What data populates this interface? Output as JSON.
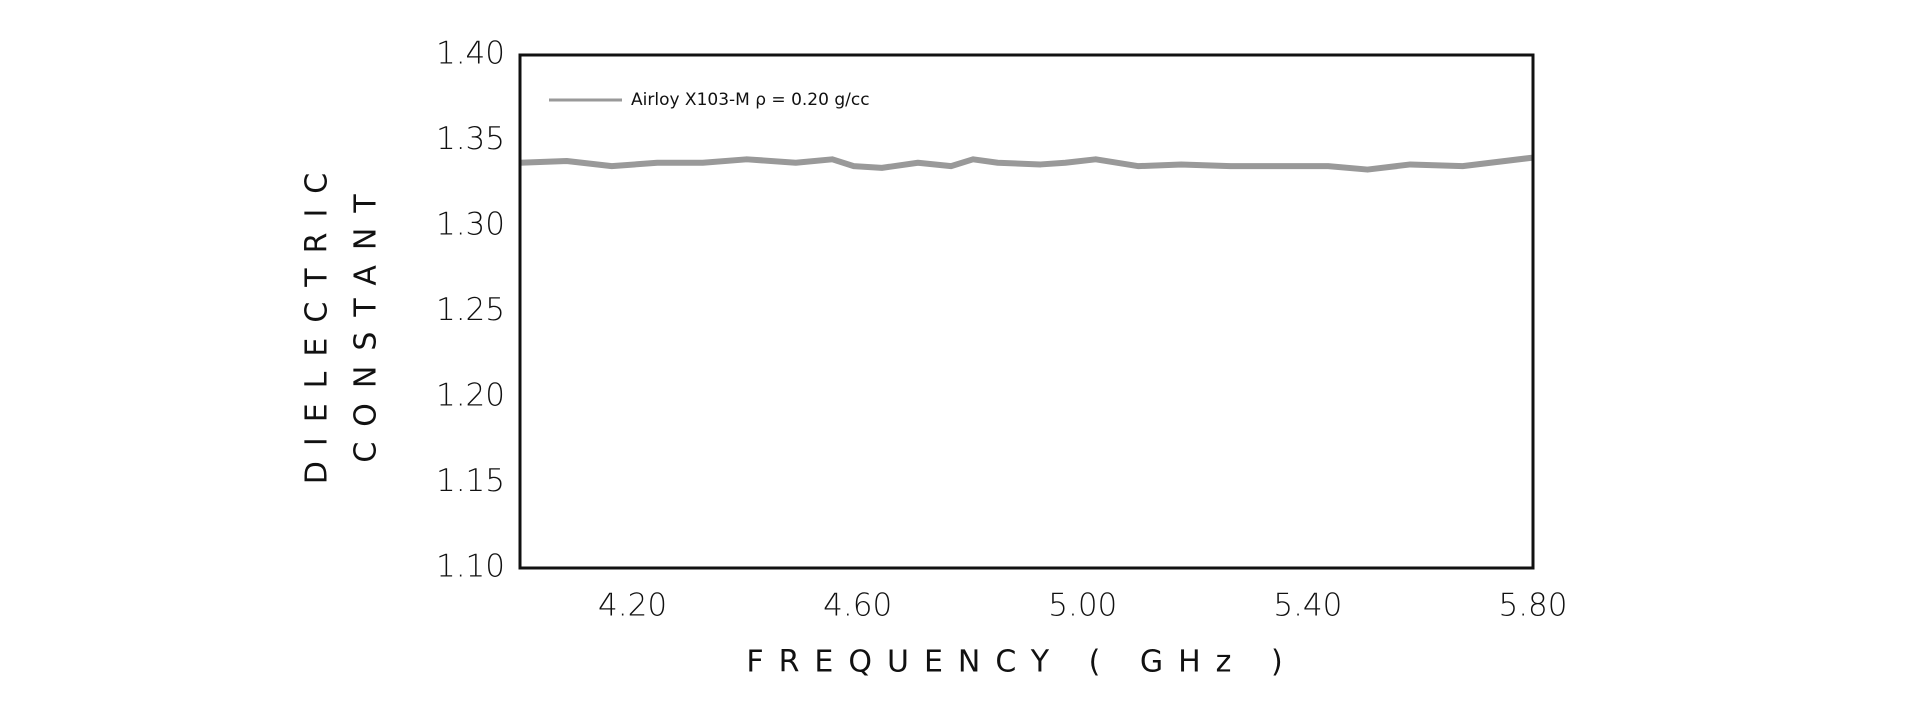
{
  "chart_data": {
    "type": "line",
    "xlabel": "FREQUENCY ( GHz )",
    "ylabel": [
      "DIELECTRIC",
      "CONSTANT"
    ],
    "x": [
      4.0,
      4.083,
      4.163,
      4.244,
      4.325,
      4.403,
      4.49,
      4.555,
      4.593,
      4.643,
      4.707,
      4.766,
      4.805,
      4.849,
      4.925,
      4.969,
      5.023,
      5.099,
      5.175,
      5.262,
      5.349,
      5.436,
      5.506,
      5.582,
      5.675,
      5.8
    ],
    "series": [
      {
        "name": "Airloy X103-M  ρ = 0.20 g/cc",
        "color": "#999999",
        "values": [
          1.337,
          1.338,
          1.335,
          1.337,
          1.337,
          1.339,
          1.337,
          1.339,
          1.335,
          1.334,
          1.337,
          1.335,
          1.339,
          1.337,
          1.336,
          1.337,
          1.339,
          1.335,
          1.336,
          1.335,
          1.335,
          1.335,
          1.333,
          1.336,
          1.335,
          1.34
        ]
      }
    ],
    "xlim": [
      4.0,
      5.8
    ],
    "xticks": [
      {
        "value": 4.2,
        "label": "4.20"
      },
      {
        "value": 4.6,
        "label": "4.60"
      },
      {
        "value": 5.0,
        "label": "5.00"
      },
      {
        "value": 5.4,
        "label": "5.40"
      },
      {
        "value": 5.8,
        "label": "5.80"
      }
    ],
    "ylim": [
      1.1,
      1.4
    ],
    "yticks": [
      {
        "value": 1.1,
        "label": "1.10"
      },
      1.15,
      {
        "value": 1.2,
        "label": "1.20"
      },
      1.25,
      {
        "value": 1.3,
        "label": "1.30"
      },
      1.35,
      {
        "value": 1.4,
        "label": "1.40"
      }
    ],
    "grid": false,
    "legend": "upper left"
  }
}
